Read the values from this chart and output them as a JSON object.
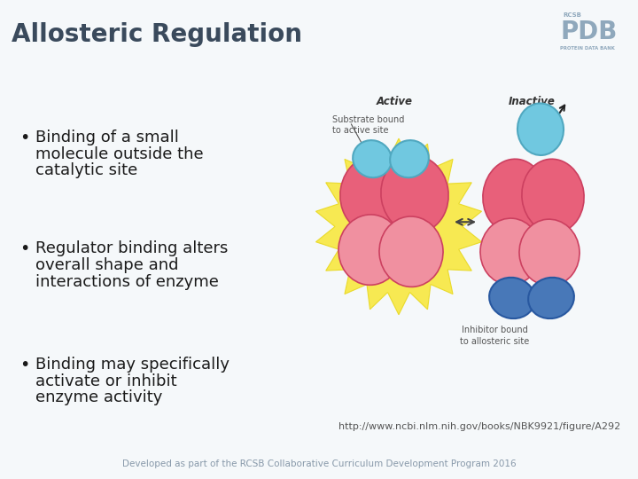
{
  "title": "Allosteric Regulation",
  "title_color": "#3a4a5c",
  "title_fontsize": 20,
  "header_bg_color": "#ccd6e0",
  "footer_bg_color": "#ccd6e0",
  "body_bg_color": "#f5f8fa",
  "bullet_points": [
    "Binding of a small\nmolecule outside the\ncatalytic site",
    "Regulator binding alters\noverall shape and\ninteractions of enzyme",
    "Binding may specifically\nactivate or inhibit\nenzyme activity"
  ],
  "bullet_fontsize": 13,
  "bullet_color": "#1a1a1a",
  "url_text": "http://www.ncbi.nlm.nih.gov/books/NBK9921/figure/A292",
  "url_color": "#555555",
  "url_fontsize": 8,
  "footer_text": "Developed as part of the RCSB Collaborative Curriculum Development Program 2016",
  "footer_color": "#8899aa",
  "footer_fontsize": 7.5,
  "pdb_logo_color": "#8fa8bc",
  "pink_main": "#e8607a",
  "pink_dark": "#cc4060",
  "pink_light": "#f090a0",
  "cyan_color": "#70c8e0",
  "cyan_dark": "#50a8c0",
  "blue_color": "#4878b8",
  "blue_dark": "#2858a0",
  "yellow_burst": "#f8e840",
  "label_color": "#555555"
}
